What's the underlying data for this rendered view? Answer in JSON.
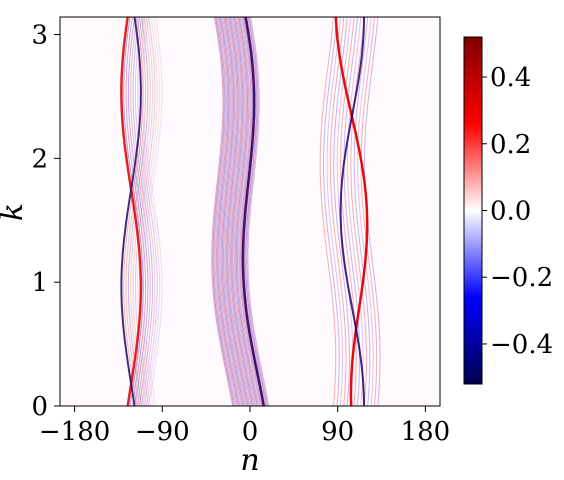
{
  "chart_data": {
    "type": "heatmap",
    "xlabel": "n",
    "ylabel": "k",
    "xlim": [
      -195,
      195
    ],
    "ylim": [
      0,
      3.14159
    ],
    "x_ticks": [
      -180,
      -90,
      0,
      90,
      180
    ],
    "x_tick_labels": [
      "−180",
      "−90",
      "0",
      "90",
      "180"
    ],
    "y_ticks": [
      0,
      1,
      2,
      3
    ],
    "y_tick_labels": [
      "0",
      "1",
      "2",
      "3"
    ],
    "colormap": "seismic",
    "colorbar": {
      "range": [
        -0.52,
        0.52
      ],
      "ticks": [
        0.4,
        0.2,
        0.0,
        -0.2,
        -0.4
      ],
      "tick_labels": [
        "0.4",
        "0.2",
        "0.0",
        "−0.2",
        "−0.4"
      ],
      "colors": [
        "#00004d",
        "#0000ff",
        "#ffffff",
        "#ff0000",
        "#800000"
      ]
    },
    "features": [
      {
        "center_n": -122,
        "amplitude_n": 12,
        "k_period": 3.14159,
        "spread_n": 12,
        "dominant": "red",
        "region_n": [
          -130,
          -95
        ]
      },
      {
        "center_n": 0,
        "amplitude_n": 14,
        "k_period": 3.14159,
        "spread_n": 35,
        "dominant": "purple",
        "region_n": [
          -35,
          5
        ]
      },
      {
        "center_n": 108,
        "amplitude_n": 14,
        "k_period": 3.14159,
        "spread_n": 30,
        "dominant": "red",
        "region_n": [
          70,
          130
        ]
      }
    ]
  }
}
